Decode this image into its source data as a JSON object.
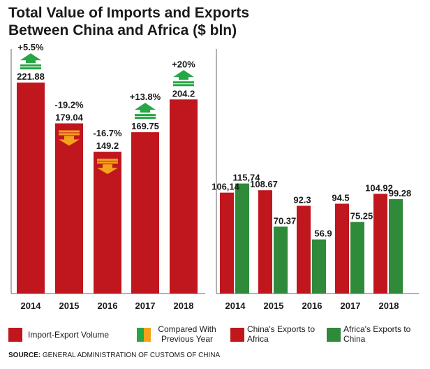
{
  "title_line1": "Total Value of Imports and Exports",
  "title_line2": "Between China and Africa ($ bln)",
  "colors": {
    "volume": "#c0161d",
    "china_exports": "#c0161d",
    "africa_exports": "#2f8a3a",
    "arrow_up": "#26a644",
    "arrow_down": "#f5a21b",
    "axis": "#666666"
  },
  "legend": [
    {
      "label": "Import-Export Volume",
      "icon": "red-swatch"
    },
    {
      "label": "Compared With Previous Year",
      "icon": "green-orange-swatch"
    },
    {
      "label": "China's Exports to Africa",
      "icon": "red-swatch"
    },
    {
      "label": "Africa's Exports to China",
      "icon": "green-swatch"
    }
  ],
  "source_label": "SOURCE:",
  "source_text": "GENERAL ADMINISTRATION OF CUSTOMS OF CHINA",
  "chart_data": [
    {
      "type": "bar",
      "categories": [
        "2014",
        "2015",
        "2016",
        "2017",
        "2018"
      ],
      "series": [
        {
          "name": "Import-Export Volume",
          "values": [
            221.88,
            179.04,
            149.2,
            169.75,
            204.2
          ],
          "labels": [
            "221.88",
            "179.04",
            "149.2",
            "169.75",
            "204.2"
          ]
        }
      ],
      "changes": [
        {
          "label": "+5.5%",
          "direction": "up"
        },
        {
          "label": "-19.2%",
          "direction": "down"
        },
        {
          "label": "-16.7%",
          "direction": "down"
        },
        {
          "label": "+13.8%",
          "direction": "up"
        },
        {
          "label": "+20%",
          "direction": "up"
        }
      ],
      "ylim": [
        0,
        250
      ]
    },
    {
      "type": "bar",
      "categories": [
        "2014",
        "2015",
        "2016",
        "2017",
        "2018"
      ],
      "series": [
        {
          "name": "China's Exports to Africa",
          "values": [
            106.14,
            108.67,
            92.3,
            94.5,
            104.92
          ],
          "labels": [
            "106,14",
            "108.67",
            "92.3",
            "94.5",
            "104.92"
          ]
        },
        {
          "name": "Africa's Exports to China",
          "values": [
            115.74,
            70.37,
            56.9,
            75.25,
            99.28
          ],
          "labels": [
            "115,74",
            "70.37",
            "56.9",
            "75.25",
            "99.28"
          ]
        }
      ],
      "ylim": [
        0,
        250
      ]
    }
  ]
}
